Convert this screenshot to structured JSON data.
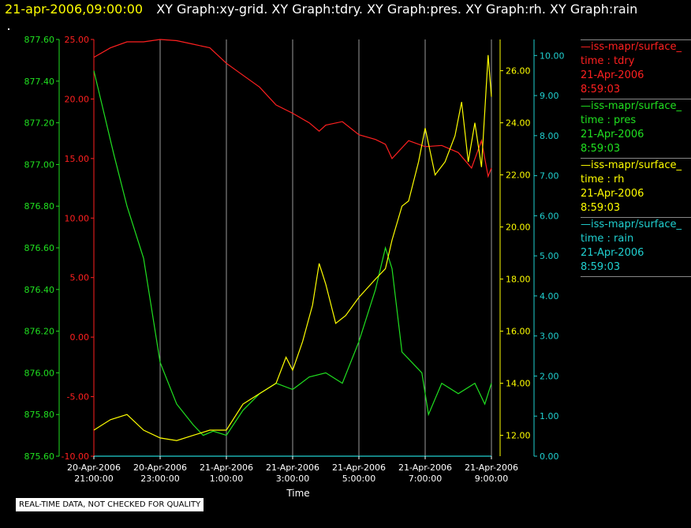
{
  "title": {
    "time": "21-apr-2006,09:00:00",
    "graphs": "XY Graph:xy-grid.  XY Graph:tdry.  XY Graph:pres.  XY Graph:rh.  XY Graph:rain"
  },
  "quality_note": "REAL-TIME DATA, NOT CHECKED FOR QUALITY",
  "legend": [
    {
      "source": "—iss-mapr/surface_",
      "var": "time : tdry",
      "date": "21-Apr-2006",
      "time": "8:59:03",
      "color": "#ff2020"
    },
    {
      "source": "—iss-mapr/surface_",
      "var": "time : pres",
      "date": "21-Apr-2006",
      "time": "8:59:03",
      "color": "#20e020"
    },
    {
      "source": "—iss-mapr/surface_",
      "var": "time : rh",
      "date": "21-Apr-2006",
      "time": "8:59:03",
      "color": "#ffff00"
    },
    {
      "source": "—iss-mapr/surface_",
      "var": "time : rain",
      "date": "21-Apr-2006",
      "time": "8:59:03",
      "color": "#20d0d0"
    }
  ],
  "chart_data": {
    "type": "line",
    "xlabel": "Time",
    "x_ticks": [
      {
        "l1": "20-Apr-2006",
        "l2": "21:00:00",
        "h": 0
      },
      {
        "l1": "20-Apr-2006",
        "l2": "23:00:00",
        "h": 2
      },
      {
        "l1": "21-Apr-2006",
        "l2": "1:00:00",
        "h": 4
      },
      {
        "l1": "21-Apr-2006",
        "l2": "3:00:00",
        "h": 6
      },
      {
        "l1": "21-Apr-2006",
        "l2": "5:00:00",
        "h": 8
      },
      {
        "l1": "21-Apr-2006",
        "l2": "7:00:00",
        "h": 10
      },
      {
        "l1": "21-Apr-2006",
        "l2": "9:00:00",
        "h": 12
      }
    ],
    "xlim_hours": [
      0,
      12
    ],
    "grid": true,
    "legend_position": "right",
    "axes": [
      {
        "name": "pres",
        "color": "#20e020",
        "ylim": [
          875.6,
          877.6
        ],
        "ticks": [
          "875.60",
          "875.80",
          "876.00",
          "876.20",
          "876.40",
          "876.60",
          "876.80",
          "877.00",
          "877.20",
          "877.40",
          "877.60"
        ]
      },
      {
        "name": "tdry",
        "color": "#ff2020",
        "ylim": [
          -10,
          25
        ],
        "ticks": [
          "-10.00",
          "-5.00",
          "0.00",
          "5.00",
          "10.00",
          "15.00",
          "20.00",
          "25.00"
        ]
      },
      {
        "name": "rh",
        "color": "#ffff00",
        "ylim": [
          11.2,
          27.2
        ],
        "ticks": [
          "12.00",
          "14.00",
          "16.00",
          "18.00",
          "20.00",
          "22.00",
          "24.00",
          "26.00"
        ]
      },
      {
        "name": "rain",
        "color": "#20d0d0",
        "ylim": [
          0,
          10.4
        ],
        "ticks": [
          "0.00",
          "1.00",
          "2.00",
          "3.00",
          "4.00",
          "5.00",
          "6.00",
          "7.00",
          "8.00",
          "9.00",
          "10.00"
        ]
      }
    ],
    "series": [
      {
        "name": "tdry",
        "axis": "tdry",
        "color": "#ff2020",
        "x": [
          0,
          0.5,
          1,
          1.5,
          2,
          2.5,
          3,
          3.5,
          4,
          4.5,
          5,
          5.5,
          6,
          6.5,
          6.8,
          7,
          7.5,
          8,
          8.5,
          8.8,
          9,
          9.5,
          10,
          10.5,
          11,
          11.4,
          11.7,
          11.9,
          12
        ],
        "y": [
          23.5,
          24.3,
          24.8,
          24.8,
          25.0,
          24.9,
          24.6,
          24.3,
          23.0,
          22.0,
          21.0,
          19.5,
          18.8,
          18.0,
          17.3,
          17.8,
          18.1,
          17.0,
          16.6,
          16.2,
          15.0,
          16.5,
          16.0,
          16.1,
          15.5,
          14.2,
          16.5,
          13.5,
          14.2
        ]
      },
      {
        "name": "pres",
        "axis": "pres",
        "color": "#20e020",
        "x": [
          0,
          0.3,
          0.6,
          1,
          1.5,
          2,
          2.5,
          3,
          3.3,
          3.6,
          4,
          4.5,
          5,
          5.5,
          6,
          6.5,
          7,
          7.5,
          8,
          8.5,
          8.8,
          9,
          9.3,
          9.6,
          9.9,
          10.1,
          10.5,
          11,
          11.5,
          11.8,
          12
        ],
        "y": [
          877.45,
          877.25,
          877.05,
          876.8,
          876.55,
          876.05,
          875.85,
          875.75,
          875.7,
          875.72,
          875.7,
          875.82,
          875.9,
          875.95,
          875.92,
          875.98,
          876.0,
          875.95,
          876.15,
          876.4,
          876.6,
          876.5,
          876.1,
          876.05,
          876.0,
          875.8,
          875.95,
          875.9,
          875.95,
          875.85,
          875.95
        ]
      },
      {
        "name": "rh",
        "axis": "rh",
        "color": "#ffff00",
        "x": [
          0,
          0.5,
          1,
          1.5,
          2,
          2.5,
          3,
          3.5,
          4,
          4.5,
          5,
          5.5,
          5.8,
          6,
          6.3,
          6.6,
          6.8,
          7.0,
          7.3,
          7.6,
          8,
          8.5,
          8.8,
          9,
          9.3,
          9.5,
          9.8,
          10.0,
          10.3,
          10.6,
          10.9,
          11.1,
          11.3,
          11.5,
          11.7,
          11.9,
          12
        ],
        "y": [
          12.2,
          12.6,
          12.8,
          12.2,
          11.9,
          11.8,
          12.0,
          12.2,
          12.2,
          13.2,
          13.6,
          14.0,
          15.0,
          14.5,
          15.6,
          17.0,
          18.6,
          17.8,
          16.3,
          16.6,
          17.3,
          18.0,
          18.4,
          19.5,
          20.8,
          21.0,
          22.5,
          23.8,
          22.0,
          22.5,
          23.5,
          24.8,
          22.5,
          24.0,
          22.3,
          26.6,
          25.0
        ]
      },
      {
        "name": "rain",
        "axis": "rain",
        "color": "#20d0d0",
        "x": [
          0,
          12
        ],
        "y": [
          0.0,
          0.0
        ]
      }
    ]
  }
}
